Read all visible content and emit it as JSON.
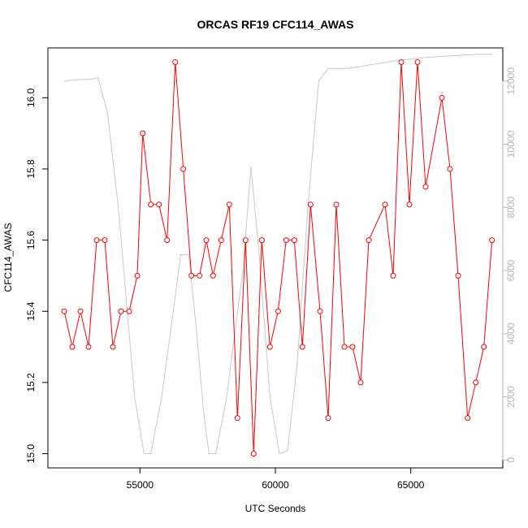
{
  "chart_data": {
    "type": "line",
    "title": "ORCAS RF19 CFC114_AWAS",
    "xlabel": "UTC Seconds",
    "ylabel": "CFC114_AWAS",
    "xlim": [
      51600,
      68400
    ],
    "ylim": [
      14.96,
      16.14
    ],
    "x_ticks": [
      55000,
      60000,
      65000
    ],
    "y_ticks": [
      15.0,
      15.2,
      15.4,
      15.6,
      15.8,
      16.0
    ],
    "y2_ticks": [
      0,
      2000,
      4000,
      6000,
      8000,
      10000,
      12000
    ],
    "y2lim": [
      -250,
      13050
    ],
    "grid": false,
    "legend": "none",
    "series": [
      {
        "axis": "left",
        "color": "#ff0000",
        "marker": "open-circle",
        "x": [
          52200,
          52500,
          52800,
          53100,
          53400,
          53700,
          54000,
          54300,
          54600,
          54900,
          55100,
          55400,
          55700,
          56000,
          56300,
          56600,
          56900,
          57200,
          57450,
          57700,
          58000,
          58300,
          58600,
          58900,
          59200,
          59500,
          59800,
          60100,
          60400,
          60700,
          61000,
          61300,
          61650,
          61950,
          62250,
          62550,
          62850,
          63150,
          63450,
          64050,
          64350,
          64650,
          64950,
          65250,
          65550,
          66150,
          66450,
          66750,
          67100,
          67400,
          67700,
          68000
        ],
        "y": [
          15.4,
          15.3,
          15.4,
          15.3,
          15.6,
          15.6,
          15.3,
          15.4,
          15.4,
          15.5,
          15.9,
          15.7,
          15.7,
          15.6,
          16.1,
          15.8,
          15.5,
          15.5,
          15.6,
          15.5,
          15.6,
          15.7,
          15.1,
          15.6,
          15.0,
          15.6,
          15.3,
          15.4,
          15.6,
          15.6,
          15.3,
          15.7,
          15.4,
          15.1,
          15.7,
          15.3,
          15.3,
          15.2,
          15.6,
          15.7,
          15.5,
          16.1,
          15.7,
          16.1,
          15.75,
          16.0,
          15.8,
          15.5,
          15.1,
          15.2,
          15.3,
          15.6
        ]
      },
      {
        "axis": "right",
        "color": "#c8c8c8",
        "marker": "none",
        "x": [
          52200,
          52700,
          53100,
          53450,
          53800,
          54200,
          54800,
          55150,
          55400,
          55800,
          56200,
          56500,
          56800,
          57100,
          57350,
          57550,
          57800,
          58200,
          58800,
          59100,
          59400,
          59800,
          60150,
          60450,
          60800,
          61200,
          61600,
          61950,
          62200,
          62700,
          63400,
          64500,
          65500,
          66500,
          67500,
          68000
        ],
        "y": [
          12000,
          12050,
          12050,
          12100,
          11000,
          8000,
          2000,
          200,
          200,
          2000,
          4500,
          6500,
          6500,
          4000,
          1500,
          200,
          200,
          2000,
          6000,
          9300,
          6500,
          2000,
          200,
          300,
          3000,
          8000,
          12000,
          12400,
          12400,
          12400,
          12500,
          12650,
          12750,
          12800,
          12850,
          12850
        ]
      }
    ],
    "colors": {
      "series_left": "#ff0000",
      "series_right": "#c8c8c8",
      "right_axis": "#b4b4b4",
      "frame": "#000000"
    }
  }
}
